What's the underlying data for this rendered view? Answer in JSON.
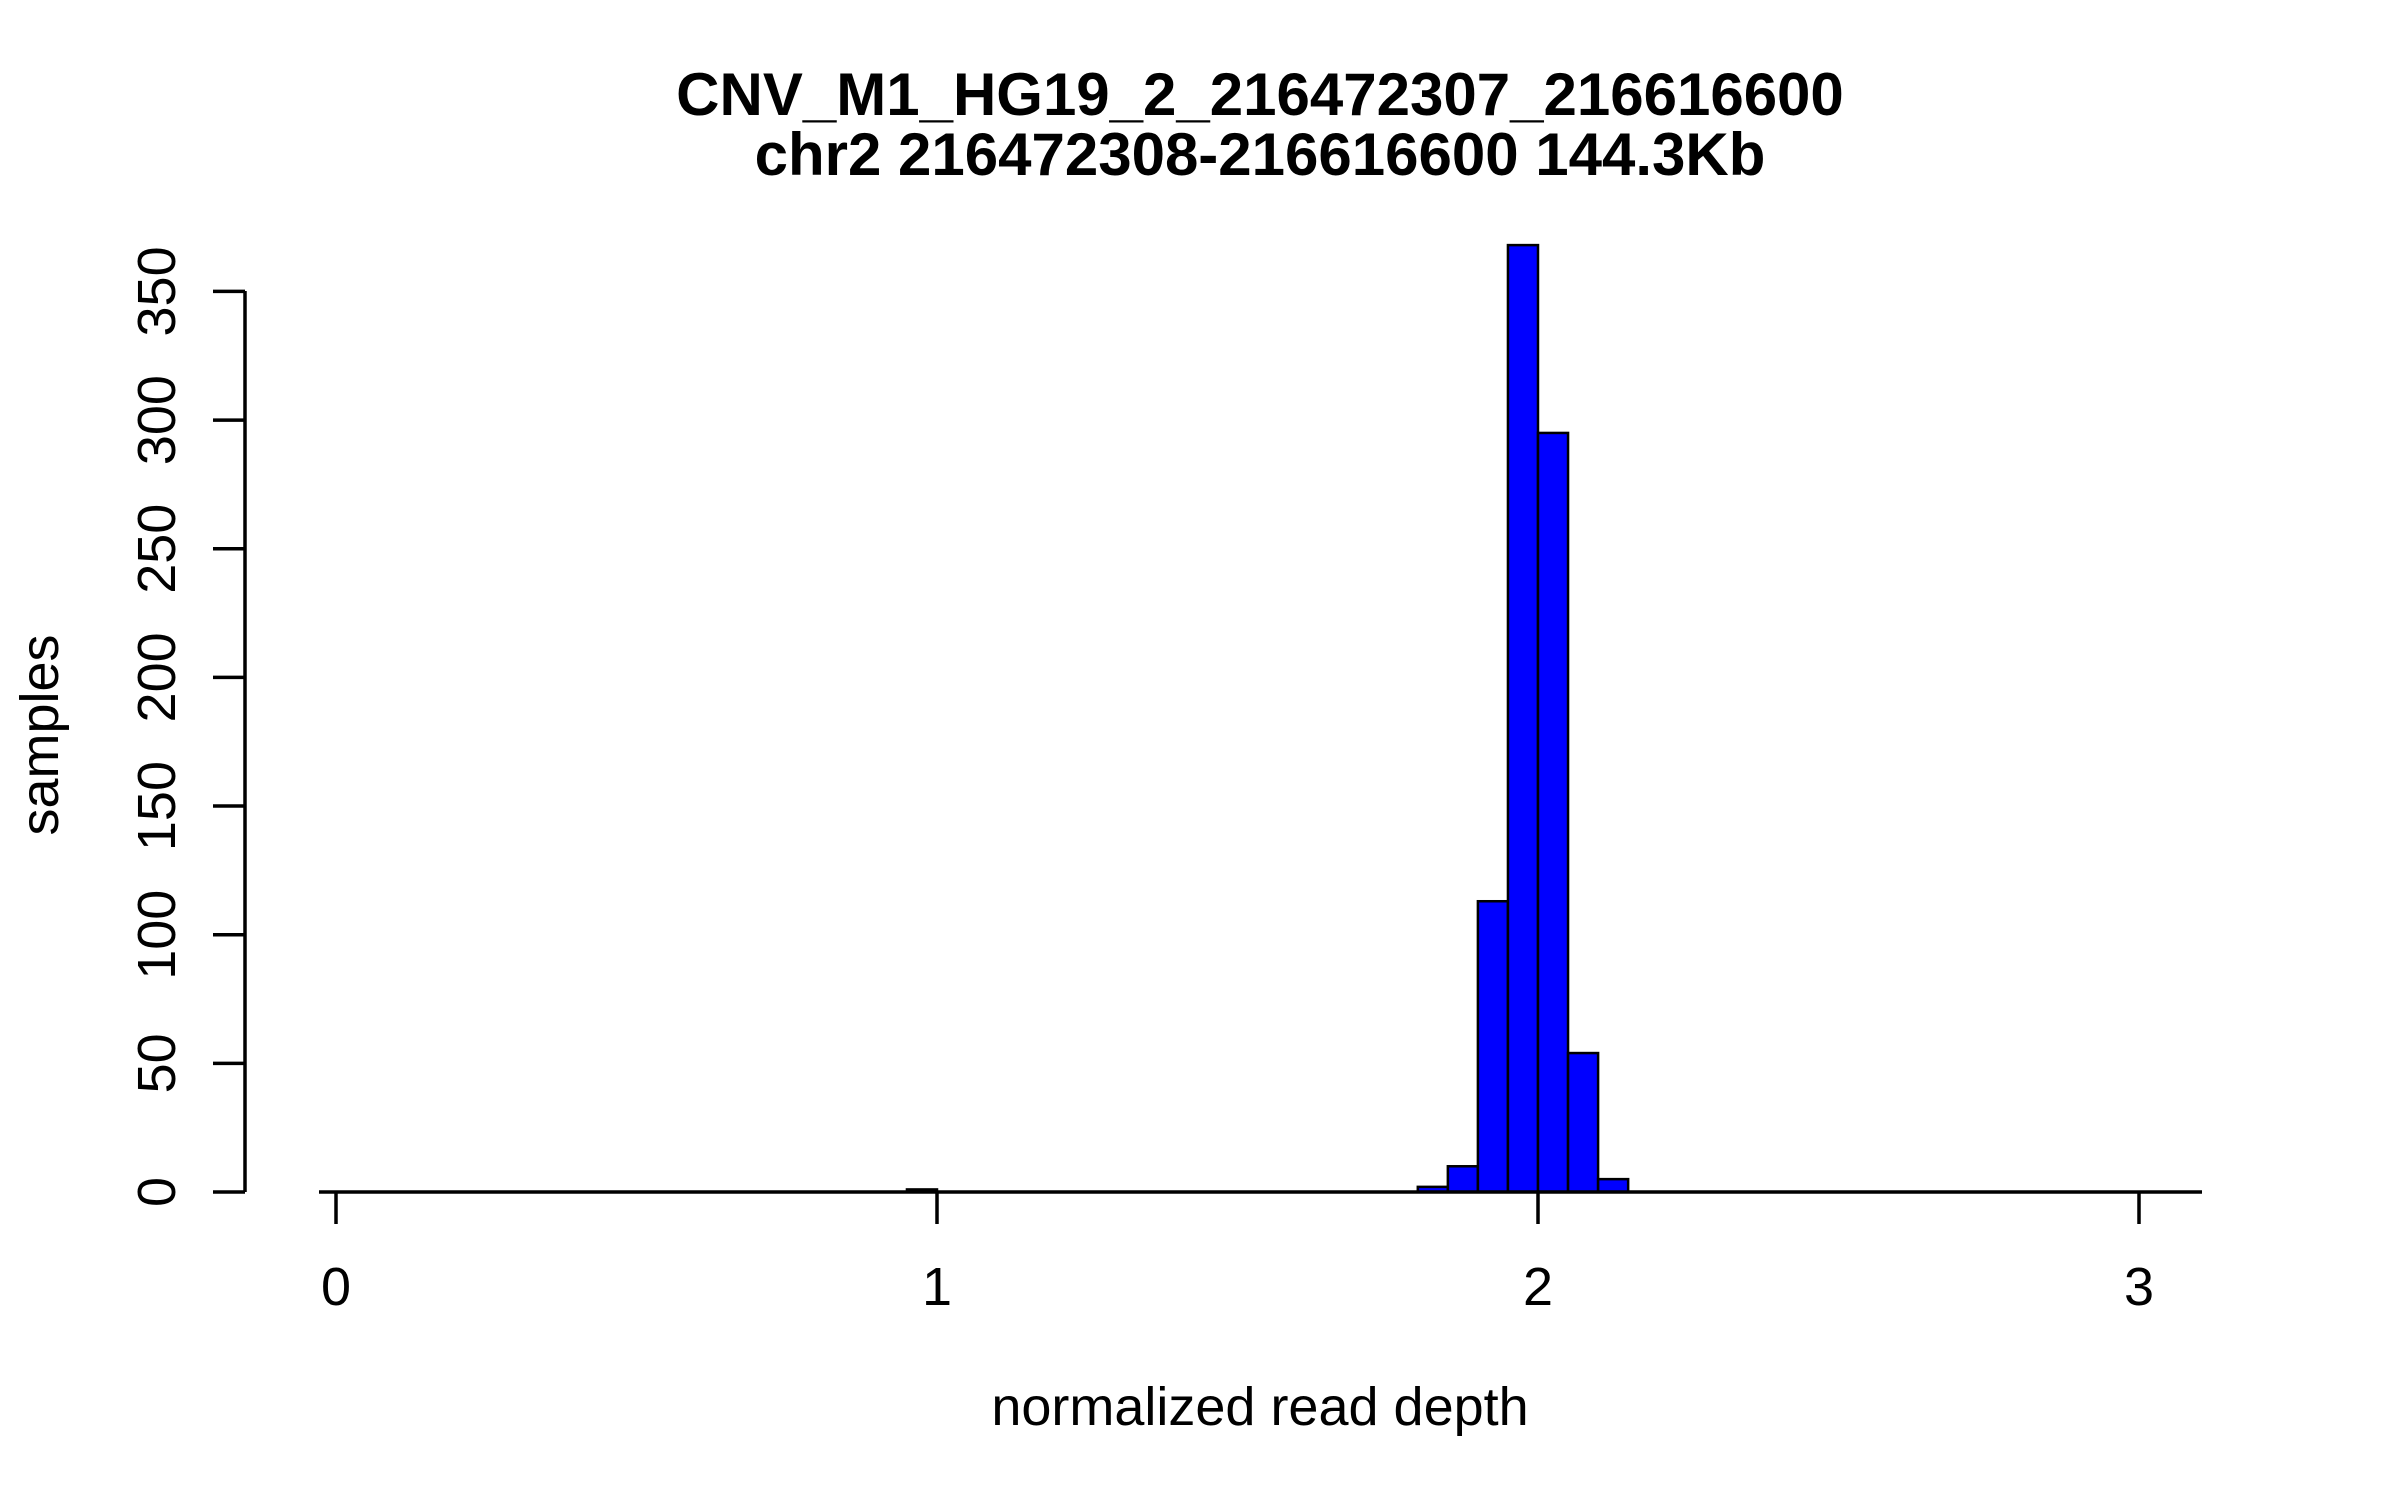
{
  "chart_data": {
    "type": "bar",
    "subtype": "histogram",
    "title": "CNV_M1_HG19_2_216472307_216616600",
    "subtitle": "chr2 216472308-216616600 144.3Kb",
    "xlabel": "normalized read depth",
    "ylabel": "samples",
    "x_ticks": [
      0,
      1,
      2,
      3
    ],
    "y_ticks": [
      0,
      50,
      100,
      150,
      200,
      250,
      300,
      350
    ],
    "xlim": [
      -0.03,
      3.1
    ],
    "ylim": [
      0,
      370
    ],
    "grid": false,
    "legend_position": "none",
    "bin_width": 0.05,
    "bins": [
      {
        "start": 0.95,
        "end": 1.0,
        "count": 1
      },
      {
        "start": 1.8,
        "end": 1.85,
        "count": 2
      },
      {
        "start": 1.85,
        "end": 1.9,
        "count": 10
      },
      {
        "start": 1.9,
        "end": 1.95,
        "count": 113
      },
      {
        "start": 1.95,
        "end": 2.0,
        "count": 368
      },
      {
        "start": 2.0,
        "end": 2.05,
        "count": 295
      },
      {
        "start": 2.05,
        "end": 2.1,
        "count": 54
      },
      {
        "start": 2.1,
        "end": 2.15,
        "count": 5
      }
    ],
    "colors": {
      "bar_fill": "#0000FF",
      "bar_border": "#000000",
      "axis": "#000000",
      "text": "#000000",
      "background": "#FFFFFF"
    }
  }
}
